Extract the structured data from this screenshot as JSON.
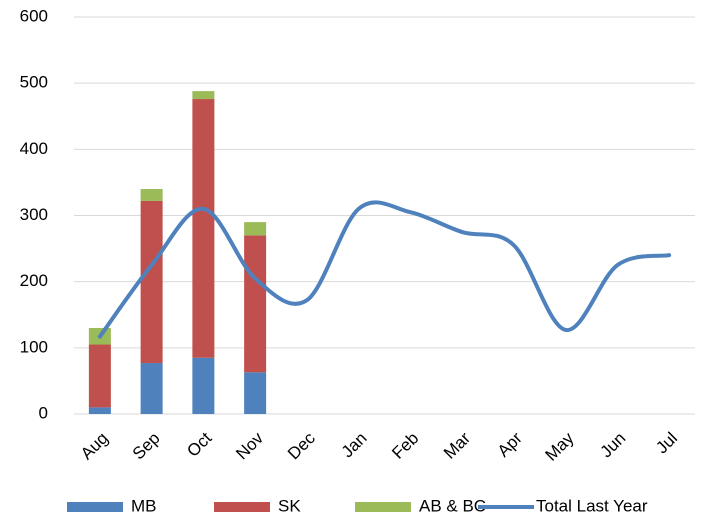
{
  "chart_data": {
    "type": "combo",
    "stacked": true,
    "grid": true,
    "legend": "bottom",
    "categories": [
      "Aug",
      "Sep",
      "Oct",
      "Nov",
      "Dec",
      "Jan",
      "Feb",
      "Mar",
      "Apr",
      "May",
      "Jun",
      "Jul"
    ],
    "series": [
      {
        "name": "MB",
        "type": "bar",
        "color": "#4f81bd",
        "values": [
          10,
          77,
          85,
          63,
          null,
          null,
          null,
          null,
          null,
          null,
          null,
          null
        ]
      },
      {
        "name": "SK",
        "type": "bar",
        "color": "#c0504d",
        "values": [
          95,
          245,
          391,
          207,
          null,
          null,
          null,
          null,
          null,
          null,
          null,
          null
        ]
      },
      {
        "name": "AB & BC",
        "type": "bar",
        "color": "#9bbb59",
        "values": [
          25,
          18,
          12,
          20,
          null,
          null,
          null,
          null,
          null,
          null,
          null,
          null
        ]
      },
      {
        "name": "Total Last Year",
        "type": "line",
        "color": "#4f81bd",
        "smooth": true,
        "values": [
          117,
          225,
          310,
          205,
          172,
          310,
          305,
          275,
          255,
          127,
          225,
          240
        ]
      }
    ],
    "ylim": [
      0,
      600
    ],
    "yticks": [
      0,
      100,
      200,
      300,
      400,
      500,
      600
    ]
  }
}
